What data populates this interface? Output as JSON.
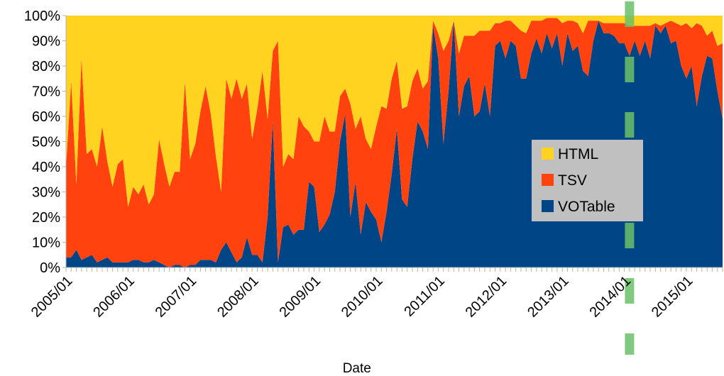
{
  "chart_data": {
    "type": "area",
    "stacked": true,
    "percent": true,
    "title": "",
    "xlabel": "Date",
    "ylabel": "",
    "ylim": [
      0,
      100
    ],
    "y_tick_labels": [
      "0%",
      "10%",
      "20%",
      "30%",
      "40%",
      "50%",
      "60%",
      "70%",
      "80%",
      "90%",
      "100%"
    ],
    "x_tick_labels": [
      "2005/01",
      "2006/01",
      "2007/01",
      "2008/01",
      "2009/01",
      "2010/01",
      "2011/01",
      "2012/01",
      "2013/01",
      "2014/01",
      "2015/01"
    ],
    "start": "2005/01",
    "end": "2015/06",
    "grid": false,
    "legend_position": "center-right",
    "marker": {
      "date": "2014/02",
      "style": "dashed",
      "color": "#6abf69"
    },
    "series": [
      {
        "name": "VOTable",
        "color": "#004586",
        "values": [
          4,
          4,
          7,
          3,
          4,
          5,
          2,
          3,
          4,
          2,
          2,
          2,
          2,
          3,
          3,
          2,
          2,
          3,
          2,
          1,
          0,
          1,
          1,
          0,
          1,
          1,
          3,
          3,
          3,
          2,
          7,
          10,
          6,
          2,
          4,
          12,
          5,
          5,
          2,
          20,
          58,
          2,
          16,
          17,
          13,
          15,
          15,
          34,
          32,
          14,
          17,
          21,
          30,
          50,
          61,
          20,
          34,
          13,
          26,
          22,
          19,
          10,
          22,
          37,
          55,
          27,
          24,
          43,
          58,
          54,
          47,
          96,
          83,
          49,
          70,
          98,
          60,
          72,
          76,
          60,
          62,
          73,
          60,
          88,
          90,
          83,
          90,
          88,
          75,
          75,
          85,
          91,
          85,
          93,
          87,
          93,
          80,
          93,
          86,
          88,
          78,
          76,
          90,
          98,
          93,
          93,
          92,
          89,
          89,
          84,
          90,
          84,
          90,
          83,
          96,
          93,
          96,
          89,
          90,
          80,
          75,
          80,
          64,
          76,
          84,
          83,
          70,
          59
        ]
      },
      {
        "name": "TSV",
        "color": "#ff420e",
        "values": [
          36,
          70,
          26,
          80,
          41,
          42,
          38,
          53,
          38,
          30,
          39,
          41,
          22,
          29,
          26,
          31,
          23,
          26,
          49,
          40,
          32,
          37,
          37,
          74,
          42,
          48,
          59,
          69,
          58,
          42,
          23,
          65,
          61,
          73,
          63,
          61,
          46,
          58,
          76,
          39,
          28,
          88,
          24,
          28,
          30,
          45,
          41,
          20,
          18,
          36,
          43,
          33,
          24,
          18,
          10,
          45,
          21,
          47,
          25,
          25,
          37,
          54,
          41,
          38,
          27,
          36,
          40,
          31,
          21,
          17,
          27,
          2,
          10,
          37,
          20,
          0,
          25,
          20,
          16,
          32,
          32,
          21,
          34,
          9,
          7,
          15,
          8,
          8,
          19,
          18,
          13,
          7,
          13,
          6,
          12,
          6,
          17,
          5,
          12,
          9,
          15,
          22,
          8,
          0,
          4,
          4,
          5,
          8,
          8,
          12,
          6,
          12,
          6,
          13,
          1,
          3,
          1,
          9,
          7,
          16,
          22,
          15,
          33,
          20,
          8,
          11,
          18,
          30
        ]
      },
      {
        "name": "HTML",
        "color": "#ffd320",
        "values": [
          60,
          26,
          67,
          17,
          55,
          53,
          60,
          44,
          58,
          68,
          59,
          57,
          76,
          68,
          71,
          67,
          75,
          71,
          49,
          59,
          68,
          62,
          62,
          26,
          57,
          51,
          38,
          28,
          39,
          56,
          70,
          25,
          33,
          25,
          33,
          27,
          49,
          37,
          22,
          41,
          14,
          10,
          60,
          55,
          57,
          40,
          44,
          46,
          50,
          50,
          40,
          46,
          46,
          32,
          29,
          35,
          45,
          40,
          49,
          53,
          44,
          36,
          37,
          25,
          18,
          37,
          36,
          26,
          21,
          29,
          26,
          2,
          7,
          14,
          10,
          2,
          15,
          8,
          8,
          8,
          6,
          6,
          6,
          3,
          3,
          2,
          2,
          4,
          6,
          7,
          2,
          2,
          2,
          1,
          1,
          1,
          3,
          2,
          2,
          3,
          7,
          2,
          2,
          2,
          3,
          3,
          3,
          3,
          3,
          4,
          4,
          4,
          4,
          4,
          3,
          4,
          3,
          2,
          3,
          4,
          3,
          5,
          3,
          4,
          8,
          6,
          12,
          11
        ]
      }
    ]
  }
}
